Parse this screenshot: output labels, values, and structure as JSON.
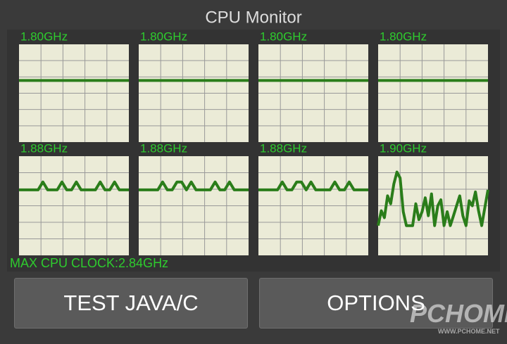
{
  "title": "CPU Monitor",
  "ylim": [
    0,
    100
  ],
  "cores": [
    {
      "freq": "1.80GHz",
      "values": [
        63,
        63,
        63,
        63,
        63,
        63,
        63,
        63,
        63,
        63,
        63,
        63
      ]
    },
    {
      "freq": "1.80GHz",
      "values": [
        63,
        63,
        63,
        63,
        63,
        63,
        63,
        63,
        63,
        63,
        63,
        63
      ]
    },
    {
      "freq": "1.80GHz",
      "values": [
        63,
        63,
        63,
        63,
        63,
        63,
        63,
        63,
        63,
        63,
        63,
        63
      ]
    },
    {
      "freq": "1.80GHz",
      "values": [
        63,
        63,
        63,
        63,
        63,
        63,
        63,
        63,
        63,
        63,
        63,
        63
      ]
    },
    {
      "freq": "1.88GHz",
      "values": [
        66,
        66,
        66,
        66,
        66,
        74,
        66,
        66,
        66,
        74,
        66,
        66,
        74,
        66,
        66,
        66,
        66,
        74,
        66,
        66,
        74,
        66,
        66,
        66
      ]
    },
    {
      "freq": "1.88GHz",
      "values": [
        66,
        66,
        66,
        66,
        66,
        74,
        66,
        66,
        74,
        74,
        66,
        74,
        66,
        66,
        66,
        66,
        74,
        66,
        66,
        74,
        66,
        66,
        66,
        66
      ]
    },
    {
      "freq": "1.88GHz",
      "values": [
        66,
        66,
        66,
        66,
        66,
        74,
        66,
        66,
        74,
        74,
        66,
        74,
        66,
        66,
        66,
        66,
        74,
        66,
        66,
        74,
        66,
        66,
        66,
        66
      ]
    },
    {
      "freq": "1.90GHz",
      "values": [
        30,
        45,
        38,
        60,
        52,
        72,
        84,
        78,
        44,
        30,
        30,
        30,
        52,
        36,
        44,
        58,
        40,
        62,
        30,
        50,
        56,
        30,
        44,
        30,
        40,
        50,
        60,
        40,
        30,
        55,
        50,
        64,
        45,
        30,
        48,
        66
      ]
    }
  ],
  "max_clock": "MAX CPU CLOCK:2.84GHz",
  "buttons": [
    "TEST JAVA/C",
    "OPTIONS"
  ],
  "watermark": {
    "logo": "PCHOME",
    "url": "WWW.PCHOME.NET"
  }
}
